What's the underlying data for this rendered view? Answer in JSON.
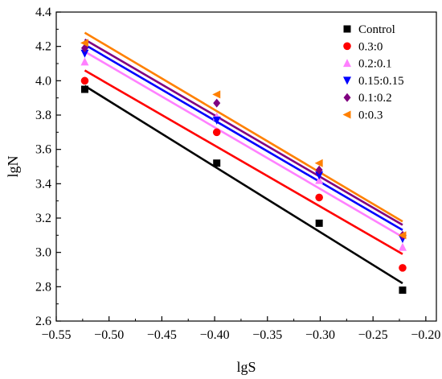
{
  "chart_data": {
    "type": "scatter",
    "title": "",
    "xlabel": "lgS",
    "ylabel": "lgN",
    "xlim": [
      -0.55,
      -0.19
    ],
    "ylim": [
      2.6,
      4.4
    ],
    "xticks": [
      -0.55,
      -0.5,
      -0.45,
      -0.4,
      -0.35,
      -0.3,
      -0.25,
      -0.2
    ],
    "xtick_labels": [
      "−0.55",
      "−0.50",
      "−0.45",
      "−0.40",
      "−0.35",
      "−0.30",
      "−0.25",
      "−0.20"
    ],
    "yticks": [
      2.6,
      2.8,
      3.0,
      3.2,
      3.4,
      3.6,
      3.8,
      4.0,
      4.2,
      4.4
    ],
    "ytick_labels": [
      "2.6",
      "2.8",
      "3.0",
      "3.2",
      "3.4",
      "3.6",
      "3.8",
      "4.0",
      "4.2",
      "4.4"
    ],
    "grid": false,
    "legend_position": "top-right",
    "x": [
      -0.523,
      -0.398,
      -0.301,
      -0.222
    ],
    "series": [
      {
        "name": "Control",
        "marker": "square",
        "color": "#000000",
        "values": [
          3.95,
          3.52,
          3.17,
          2.78
        ],
        "fit": [
          3.97,
          2.82
        ]
      },
      {
        "name": "0.3:0",
        "marker": "circle",
        "color": "#ff0000",
        "values": [
          4.0,
          3.7,
          3.32,
          2.91
        ],
        "fit": [
          4.06,
          2.99
        ]
      },
      {
        "name": "0.2:0.1",
        "marker": "triangle-up",
        "color": "#ff80ff",
        "values": [
          4.11,
          3.79,
          3.42,
          3.03
        ],
        "fit": [
          4.17,
          3.09
        ]
      },
      {
        "name": "0.15:0.15",
        "marker": "triangle-down",
        "color": "#0000ff",
        "values": [
          4.16,
          3.77,
          3.45,
          3.08
        ],
        "fit": [
          4.21,
          3.13
        ]
      },
      {
        "name": "0.1:0.2",
        "marker": "diamond",
        "color": "#800080",
        "values": [
          4.19,
          3.87,
          3.48,
          3.1
        ],
        "fit": [
          4.24,
          3.16
        ]
      },
      {
        "name": "0:0.3",
        "marker": "triangle-left",
        "color": "#ff8000",
        "values": [
          4.22,
          3.92,
          3.52,
          3.1
        ],
        "fit": [
          4.28,
          3.18
        ]
      }
    ]
  }
}
